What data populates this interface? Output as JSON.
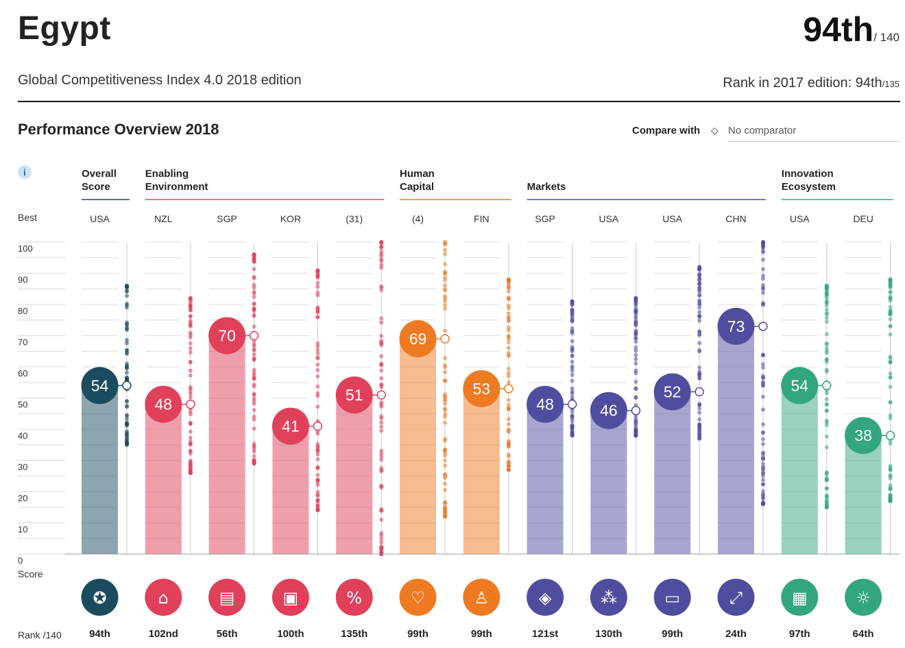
{
  "header": {
    "country": "Egypt",
    "rank": "94th",
    "rank_of": "/ 140",
    "subtitle": "Global Competitiveness Index 4.0  2018 edition",
    "prev_rank_label": "Rank in 2017 edition: 94th",
    "prev_rank_of": "/135"
  },
  "section": {
    "title": "Performance Overview 2018",
    "compare_label": "Compare with",
    "compare_icon": "diamond-icon",
    "compare_value": "No comparator"
  },
  "labels": {
    "best": "Best",
    "score": "Score",
    "rank": "Rank /140",
    "info_icon": "i"
  },
  "colors": {
    "overall": "#1b4b5e",
    "enabling": "#e0405a",
    "human": "#ee7a22",
    "markets": "#4f4e9e",
    "innovation": "#33a67b"
  },
  "chart_data": {
    "type": "bar",
    "title": "Performance Overview 2018",
    "xlabel": "",
    "ylabel": "Score",
    "ylim": [
      0,
      100
    ],
    "yticks": [
      "0",
      "10",
      "20",
      "30",
      "40",
      "50",
      "60",
      "70",
      "80",
      "90",
      "100"
    ],
    "groups": [
      {
        "name": "Overall\nScore",
        "color_key": "overall",
        "pillars": [
          0
        ]
      },
      {
        "name": "Enabling\nEnvironment",
        "color_key": "enabling",
        "pillars": [
          1,
          2,
          3,
          4
        ]
      },
      {
        "name": "Human\nCapital",
        "color_key": "human",
        "pillars": [
          5,
          6
        ]
      },
      {
        "name": "Markets",
        "color_key": "markets",
        "pillars": [
          7,
          8,
          9,
          10
        ]
      },
      {
        "name": "Innovation\nEcosystem",
        "color_key": "innovation",
        "pillars": [
          11,
          12
        ]
      }
    ],
    "pillars": [
      {
        "key": "overall",
        "best": "USA",
        "score": 54,
        "label": "54",
        "rank": "94th",
        "icon": "award-icon",
        "dist_min": 35,
        "dist_max": 86
      },
      {
        "key": "institutions",
        "best": "NZL",
        "score": 48,
        "label": "48",
        "rank": "102nd",
        "icon": "institution-icon",
        "dist_min": 26,
        "dist_max": 82
      },
      {
        "key": "infrastructure",
        "best": "SGP",
        "score": 70,
        "label": "70",
        "rank": "56th",
        "icon": "train-icon",
        "dist_min": 29,
        "dist_max": 96
      },
      {
        "key": "ict",
        "best": "KOR",
        "score": 41,
        "label": "41",
        "rank": "100th",
        "icon": "chip-icon",
        "dist_min": 14,
        "dist_max": 91
      },
      {
        "key": "macro",
        "best": "(31)",
        "score": 51,
        "label": "51",
        "rank": "135th",
        "icon": "percent-icon",
        "dist_min": 0,
        "dist_max": 100
      },
      {
        "key": "health",
        "best": "(4)",
        "score": 69,
        "label": "69",
        "rank": "99th",
        "icon": "heart-icon",
        "dist_min": 12,
        "dist_max": 100
      },
      {
        "key": "skills",
        "best": "FIN",
        "score": 53,
        "label": "53",
        "rank": "99th",
        "icon": "graduate-icon",
        "dist_min": 27,
        "dist_max": 88
      },
      {
        "key": "product",
        "best": "SGP",
        "score": 48,
        "label": "48",
        "rank": "121st",
        "icon": "tag-icon",
        "dist_min": 38,
        "dist_max": 81
      },
      {
        "key": "labour",
        "best": "USA",
        "score": 46,
        "label": "46",
        "rank": "130th",
        "icon": "people-icon",
        "dist_min": 38,
        "dist_max": 82
      },
      {
        "key": "financial",
        "best": "USA",
        "score": 52,
        "label": "52",
        "rank": "99th",
        "icon": "card-icon",
        "dist_min": 37,
        "dist_max": 92
      },
      {
        "key": "market_size",
        "best": "CHN",
        "score": 73,
        "label": "73",
        "rank": "24th",
        "icon": "expand-icon",
        "dist_min": 16,
        "dist_max": 100
      },
      {
        "key": "business",
        "best": "USA",
        "score": 54,
        "label": "54",
        "rank": "97th",
        "icon": "building-icon",
        "dist_min": 15,
        "dist_max": 86
      },
      {
        "key": "innovation",
        "best": "DEU",
        "score": 38,
        "label": "38",
        "rank": "64th",
        "icon": "bulb-icon",
        "dist_min": 17,
        "dist_max": 88
      }
    ]
  }
}
